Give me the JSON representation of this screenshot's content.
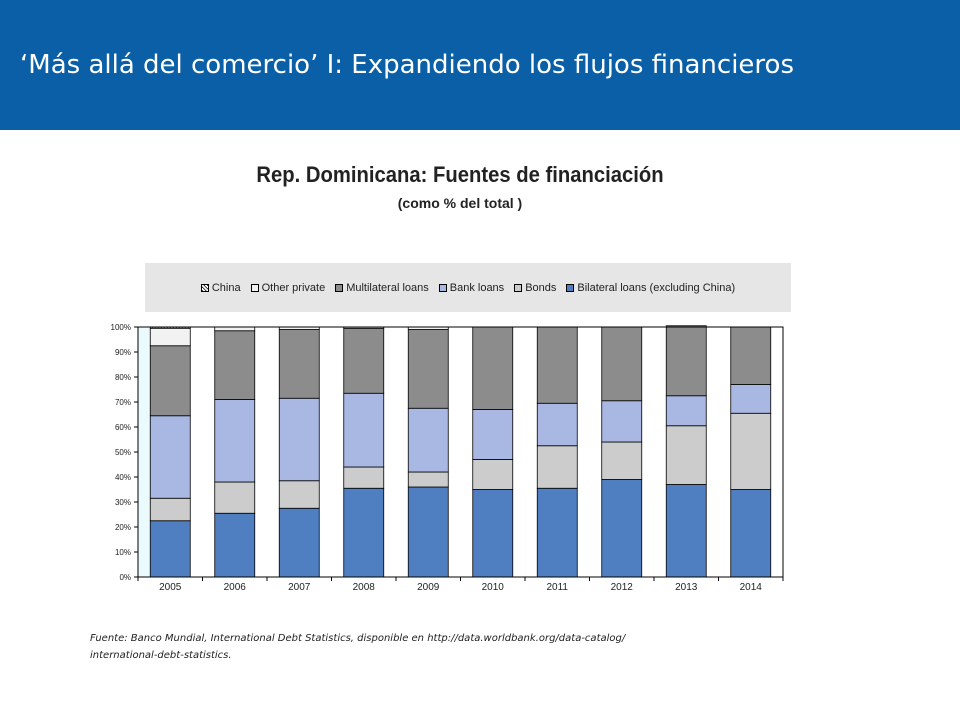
{
  "header": {
    "title": "‘Más allá del comercio’ I: Expandiendo los flujos financieros"
  },
  "colors": {
    "header_bg": "#0a5fa6",
    "plot_bg": "#eafafd",
    "china": "#ffffff",
    "other_private": "#f2f2f2",
    "multilateral_loans": "#8c8c8c",
    "bank_loans": "#a8b8e2",
    "bonds": "#cccccc",
    "bilateral_loans": "#4f7fc0"
  },
  "chart_data": {
    "type": "bar",
    "stacked": true,
    "title": "Rep. Dominicana: Fuentes de financiación",
    "subtitle": "(como % del total )",
    "categories": [
      "2005",
      "2006",
      "2007",
      "2008",
      "2009",
      "2010",
      "2011",
      "2012",
      "2013",
      "2014"
    ],
    "ylim": [
      0,
      100
    ],
    "yticks": [
      "0%",
      "10%",
      "20%",
      "30%",
      "40%",
      "50%",
      "60%",
      "70%",
      "80%",
      "90%",
      "100%"
    ],
    "legend_position": "top",
    "series": [
      {
        "name": "Bilateral loans (excluding China)",
        "key": "bilateral_loans",
        "values": [
          22.5,
          25.5,
          27.5,
          35.5,
          36,
          35,
          35.5,
          39,
          37,
          35
        ]
      },
      {
        "name": "Bonds",
        "key": "bonds",
        "values": [
          9,
          12.5,
          11,
          8.5,
          6,
          12,
          17,
          15,
          23.5,
          30.5
        ]
      },
      {
        "name": "Bank loans",
        "key": "bank_loans",
        "values": [
          33,
          33,
          33,
          29.5,
          25.5,
          20,
          17,
          16.5,
          12,
          11.5
        ]
      },
      {
        "name": "Multilateral loans",
        "key": "multilateral_loans",
        "values": [
          28,
          27.5,
          27.5,
          26,
          31.5,
          33,
          30.5,
          29.5,
          28,
          23
        ]
      },
      {
        "name": "Other private",
        "key": "other_private",
        "values": [
          7,
          1.5,
          1,
          0.5,
          1,
          0,
          0,
          0,
          0,
          0
        ]
      },
      {
        "name": "China",
        "key": "china",
        "values": [
          0.5,
          0,
          0,
          0,
          0,
          0,
          0,
          0,
          0,
          0
        ]
      }
    ],
    "legend_order": [
      "china",
      "other_private",
      "multilateral_loans",
      "bank_loans",
      "bonds",
      "bilateral_loans"
    ]
  },
  "source": {
    "line1": "Fuente: Banco Mundial, International Debt Statistics, disponible en http://data.worldbank.org/data-catalog/",
    "line2": "international-debt-statistics."
  }
}
